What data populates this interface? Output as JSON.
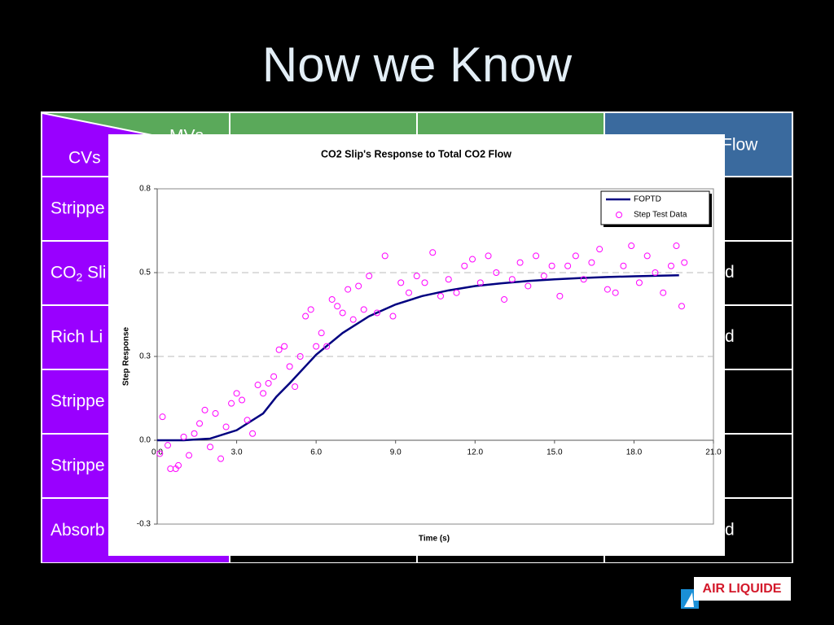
{
  "slide_title": "Now we Know",
  "table": {
    "corner_top": "MVs",
    "corner_bottom": "CVs",
    "header_last": "Flow",
    "rows": [
      {
        "label": "Strippe"
      },
      {
        "label": "CO",
        "label_sub": "2",
        "label_rest": " Sli",
        "last": "d"
      },
      {
        "label": "Rich Li",
        "last": "d"
      },
      {
        "label": "Strippe"
      },
      {
        "label": "Strippe"
      },
      {
        "label": "Absorb",
        "last": "d"
      }
    ]
  },
  "logo": "AIR LIQUIDE",
  "chart_data": {
    "type": "line",
    "title": "CO2 Slip's Response to Total CO2 Flow",
    "x_label": "Time (s)",
    "y_label": "Step Response",
    "xlim": [
      0,
      21
    ],
    "xticks": [
      {
        "value": 0,
        "label": "0.0"
      },
      {
        "value": 3,
        "label": "3.0"
      },
      {
        "value": 6,
        "label": "6.0"
      },
      {
        "value": 9,
        "label": "9.0"
      },
      {
        "value": 12,
        "label": "12.0"
      },
      {
        "value": 15,
        "label": "15.0"
      },
      {
        "value": 18,
        "label": "18.0"
      },
      {
        "value": 21,
        "label": "21.0"
      }
    ],
    "ylim": [
      -0.25,
      0.75
    ],
    "yticks": [
      {
        "value": -0.25,
        "label": "-0.3"
      },
      {
        "value": 0,
        "label": "0.0"
      },
      {
        "value": 0.25,
        "label": "0.3"
      },
      {
        "value": 0.5,
        "label": "0.5"
      },
      {
        "value": 0.75,
        "label": "0.8"
      }
    ],
    "grid": true,
    "legend": "top-right",
    "series": [
      {
        "name": "FOPTD",
        "type": "line",
        "color": "#000080",
        "x": [
          0,
          1,
          2,
          3,
          4,
          4.5,
          5,
          6,
          7,
          8,
          9,
          10,
          11,
          12,
          13,
          14,
          15,
          16,
          17,
          18,
          19,
          19.7
        ],
        "values": [
          0,
          0,
          0.005,
          0.03,
          0.08,
          0.13,
          0.17,
          0.255,
          0.32,
          0.37,
          0.405,
          0.43,
          0.447,
          0.46,
          0.468,
          0.475,
          0.48,
          0.484,
          0.487,
          0.489,
          0.491,
          0.492
        ]
      },
      {
        "name": "Step Test Data",
        "type": "scatter",
        "color": "#ff00ff",
        "x": [
          0.1,
          0.2,
          0.4,
          0.5,
          0.7,
          0.8,
          1.0,
          1.2,
          1.4,
          1.6,
          1.8,
          2.0,
          2.2,
          2.4,
          2.6,
          2.8,
          3.0,
          3.2,
          3.4,
          3.6,
          3.8,
          4.0,
          4.2,
          4.4,
          4.6,
          4.8,
          5.0,
          5.2,
          5.4,
          5.6,
          5.8,
          6.0,
          6.2,
          6.4,
          6.6,
          6.8,
          7.0,
          7.2,
          7.4,
          7.6,
          7.8,
          8.0,
          8.3,
          8.6,
          8.9,
          9.2,
          9.5,
          9.8,
          10.1,
          10.4,
          10.7,
          11.0,
          11.3,
          11.6,
          11.9,
          12.2,
          12.5,
          12.8,
          13.1,
          13.4,
          13.7,
          14.0,
          14.3,
          14.6,
          14.9,
          15.2,
          15.5,
          15.8,
          16.1,
          16.4,
          16.7,
          17.0,
          17.3,
          17.6,
          17.9,
          18.2,
          18.5,
          18.8,
          19.1,
          19.4,
          19.6,
          19.8,
          19.9
        ],
        "values": [
          -0.04,
          0.07,
          -0.015,
          -0.085,
          -0.085,
          -0.075,
          0.01,
          -0.045,
          0.02,
          0.05,
          0.09,
          -0.02,
          0.08,
          -0.055,
          0.04,
          0.11,
          0.14,
          0.12,
          0.06,
          0.02,
          0.165,
          0.14,
          0.17,
          0.19,
          0.27,
          0.28,
          0.22,
          0.16,
          0.25,
          0.37,
          0.39,
          0.28,
          0.32,
          0.28,
          0.42,
          0.4,
          0.38,
          0.45,
          0.36,
          0.46,
          0.39,
          0.49,
          0.38,
          0.55,
          0.37,
          0.47,
          0.44,
          0.49,
          0.47,
          0.56,
          0.43,
          0.48,
          0.44,
          0.52,
          0.54,
          0.47,
          0.55,
          0.5,
          0.42,
          0.48,
          0.53,
          0.46,
          0.55,
          0.49,
          0.52,
          0.43,
          0.52,
          0.55,
          0.48,
          0.53,
          0.57,
          0.45,
          0.44,
          0.52,
          0.58,
          0.47,
          0.55,
          0.5,
          0.44,
          0.52,
          0.58,
          0.4,
          0.53
        ]
      }
    ]
  }
}
